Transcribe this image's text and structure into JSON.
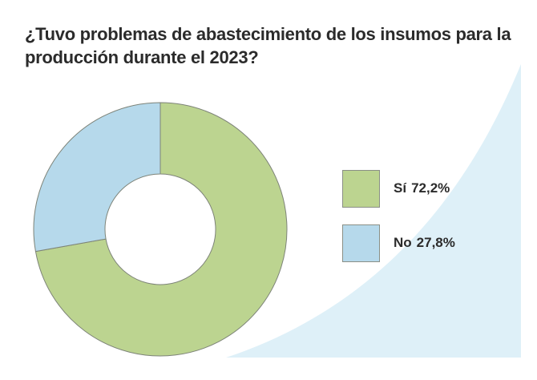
{
  "title": "¿Tuvo problemas de abastecimiento de los insumos para la producción durante el 2023?",
  "colors": {
    "background_accent": "#def0f8",
    "si": "#bcd490",
    "no": "#b6d9eb",
    "stroke": "#7d8378"
  },
  "chart_data": {
    "type": "pie",
    "variant": "donut",
    "title": "¿Tuvo problemas de abastecimiento de los insumos para la producción durante el 2023?",
    "legend_position": "right",
    "slices": [
      {
        "label": "Sí",
        "value": 72.2,
        "value_label": "72,2%",
        "color": "#bcd490"
      },
      {
        "label": "No",
        "value": 27.8,
        "value_label": "27,8%",
        "color": "#b6d9eb"
      }
    ]
  }
}
